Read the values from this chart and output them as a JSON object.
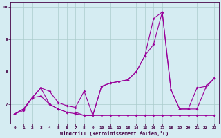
{
  "x": [
    0,
    1,
    2,
    3,
    4,
    5,
    6,
    7,
    8,
    9,
    10,
    11,
    12,
    13,
    14,
    15,
    16,
    17,
    18,
    19,
    20,
    21,
    22,
    23
  ],
  "line_spike": [
    6.7,
    6.85,
    7.2,
    7.25,
    7.0,
    6.85,
    6.75,
    6.75,
    6.65,
    6.65,
    7.55,
    7.65,
    7.7,
    7.75,
    8.0,
    8.5,
    8.85,
    9.85,
    7.45,
    6.85,
    6.85,
    7.5,
    7.55,
    7.8
  ],
  "line_mid": [
    6.7,
    6.85,
    7.2,
    7.5,
    7.4,
    7.05,
    6.95,
    6.9,
    7.4,
    6.65,
    7.55,
    7.65,
    7.7,
    7.75,
    8.0,
    8.5,
    9.65,
    9.85,
    7.45,
    6.85,
    6.85,
    6.85,
    7.5,
    7.8
  ],
  "line_flat": [
    6.7,
    6.8,
    7.2,
    7.5,
    7.0,
    6.85,
    6.75,
    6.7,
    6.65,
    6.65,
    6.65,
    6.65,
    6.65,
    6.65,
    6.65,
    6.65,
    6.65,
    6.65,
    6.65,
    6.65,
    6.65,
    6.65,
    6.65,
    6.65
  ],
  "line_color": "#990099",
  "bg_color": "#d5ecf2",
  "grid_color": "#aacccc",
  "xlabel": "Windchill (Refroidissement éolien,°C)",
  "ylim": [
    6.4,
    10.15
  ],
  "xlim": [
    -0.5,
    23.5
  ],
  "yticks": [
    7,
    8,
    9,
    10
  ],
  "xticks": [
    0,
    1,
    2,
    3,
    4,
    5,
    6,
    7,
    8,
    9,
    10,
    11,
    12,
    13,
    14,
    15,
    16,
    17,
    18,
    19,
    20,
    21,
    22,
    23
  ]
}
